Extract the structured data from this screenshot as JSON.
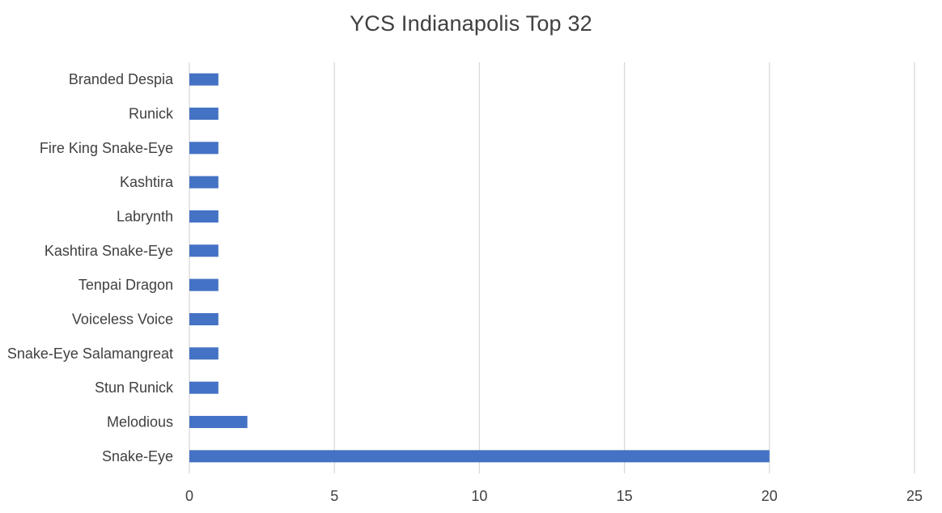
{
  "chart_data": {
    "type": "bar",
    "orientation": "horizontal",
    "title": "YCS Indianapolis Top 32",
    "categories": [
      "Branded Despia",
      "Runick",
      "Fire King Snake-Eye",
      "Kashtira",
      "Labrynth",
      "Kashtira Snake-Eye",
      "Tenpai Dragon",
      "Voiceless Voice",
      "Snake-Eye Salamangreat",
      "Stun Runick",
      "Melodious",
      "Snake-Eye"
    ],
    "values": [
      1,
      1,
      1,
      1,
      1,
      1,
      1,
      1,
      1,
      1,
      2,
      20
    ],
    "xlim": [
      0,
      25
    ],
    "xticks": [
      "0",
      "5",
      "10",
      "15",
      "20",
      "25"
    ],
    "xlabel": "",
    "ylabel": "",
    "grid": "vertical",
    "legend": "none",
    "bar_color": "#4472C4",
    "grid_color": "#D9D9D9",
    "text_color": "#404040"
  }
}
